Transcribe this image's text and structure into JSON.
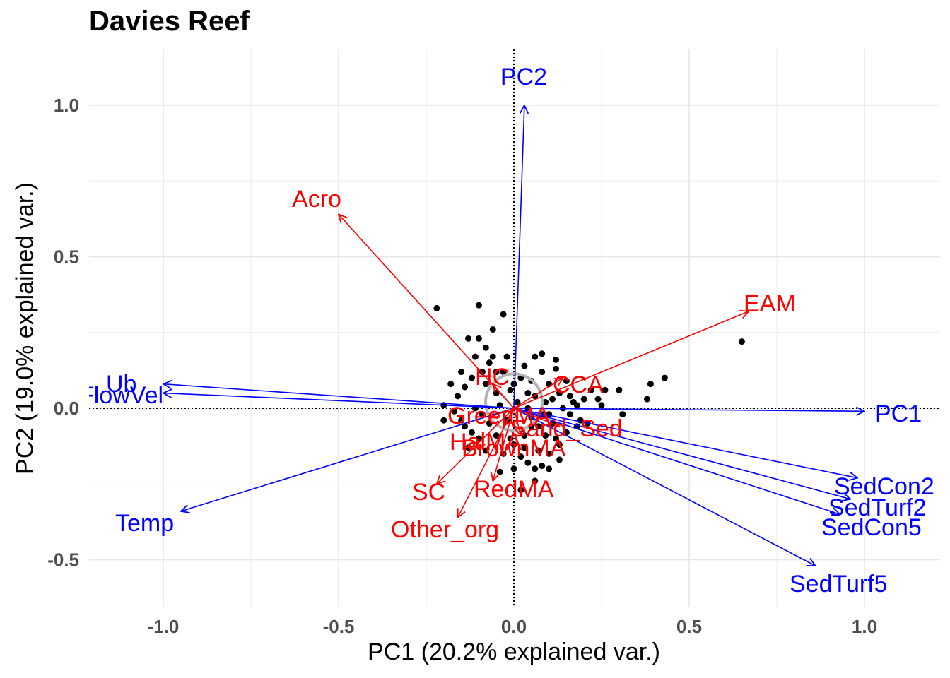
{
  "chart_data": {
    "type": "scatter",
    "subtype": "pca-biplot",
    "title": "Davies Reef",
    "xlabel": "PC1 (20.2% explained var.)",
    "ylabel": "PC2 (19.0% explained var.)",
    "xlim": [
      -1.2,
      1.2
    ],
    "ylim": [
      -0.64,
      1.18
    ],
    "x_ticks": [
      -1.0,
      -0.5,
      0.0,
      0.5,
      1.0
    ],
    "x_tick_labels": [
      "-1.0",
      "-0.5",
      "0.0",
      "0.5",
      "1.0"
    ],
    "y_ticks": [
      -0.5,
      0.0,
      0.5,
      1.0
    ],
    "y_tick_labels": [
      "-0.5",
      "0.0",
      "0.5",
      "1.0"
    ],
    "grid": true,
    "reference_lines": {
      "x": 0,
      "y": 0,
      "style": "dotted"
    },
    "colors": {
      "environment": "#0000ff",
      "benthic": "#ff0000",
      "points": "#000000",
      "ellipse": "#b3b3b3"
    },
    "loadings": {
      "environment": [
        {
          "name": "PC2",
          "x": 0.03,
          "y": 1.0
        },
        {
          "name": "PC1",
          "x": 1.0,
          "y": -0.01
        },
        {
          "name": "Ub",
          "x": -1.0,
          "y": 0.08
        },
        {
          "name": "FlowVel",
          "x": -1.0,
          "y": 0.05
        },
        {
          "name": "Temp",
          "x": -0.95,
          "y": -0.34
        },
        {
          "name": "SedCon2",
          "x": 0.98,
          "y": -0.23
        },
        {
          "name": "SedTurf2",
          "x": 0.96,
          "y": -0.3
        },
        {
          "name": "SedCon5",
          "x": 0.93,
          "y": -0.35
        },
        {
          "name": "SedTurf5",
          "x": 0.86,
          "y": -0.52
        }
      ],
      "benthic": [
        {
          "name": "Acro",
          "x": -0.5,
          "y": 0.64
        },
        {
          "name": "EAM",
          "x": 0.67,
          "y": 0.32
        },
        {
          "name": "CCA",
          "x": 0.14,
          "y": 0.1
        },
        {
          "name": "HC",
          "x": -0.06,
          "y": 0.08
        },
        {
          "name": "Sand_Sed",
          "x": 0.13,
          "y": -0.06
        },
        {
          "name": "GreenMA",
          "x": -0.07,
          "y": -0.03
        },
        {
          "name": "HalMA",
          "x": -0.03,
          "y": -0.06
        },
        {
          "name": "BrownMA",
          "x": 0.02,
          "y": -0.09
        },
        {
          "name": "SC",
          "x": -0.22,
          "y": -0.25
        },
        {
          "name": "RedMA",
          "x": -0.06,
          "y": -0.24
        },
        {
          "name": "Other_org",
          "x": -0.16,
          "y": -0.36
        }
      ]
    },
    "scores": [
      [
        0.65,
        0.22
      ],
      [
        0.43,
        0.1
      ],
      [
        0.39,
        0.08
      ],
      [
        0.38,
        0.03
      ],
      [
        0.3,
        0.06
      ],
      [
        0.31,
        -0.02
      ],
      [
        0.26,
        0.06
      ],
      [
        0.24,
        0.03
      ],
      [
        0.2,
        0.03
      ],
      [
        0.18,
        0.01
      ],
      [
        0.16,
        0.04
      ],
      [
        0.13,
        0.05
      ],
      [
        0.1,
        -0.02
      ],
      [
        0.08,
        0.12
      ],
      [
        0.06,
        0.17
      ],
      [
        -0.03,
        0.31
      ],
      [
        -0.1,
        0.34
      ],
      [
        -0.22,
        0.33
      ],
      [
        -0.13,
        0.23
      ],
      [
        -0.08,
        0.2
      ],
      [
        -0.06,
        0.17
      ],
      [
        -0.05,
        0.12
      ],
      [
        -0.09,
        0.12
      ],
      [
        -0.12,
        0.1
      ],
      [
        -0.14,
        0.07
      ],
      [
        -0.16,
        0.04
      ],
      [
        -0.2,
        0.01
      ],
      [
        -0.2,
        -0.04
      ],
      [
        -0.14,
        -0.06
      ],
      [
        -0.1,
        -0.1
      ],
      [
        -0.08,
        -0.14
      ],
      [
        0.0,
        -0.12
      ],
      [
        0.02,
        -0.16
      ],
      [
        0.04,
        -0.18
      ],
      [
        0.06,
        -0.2
      ],
      [
        0.08,
        -0.19
      ],
      [
        0.1,
        -0.15
      ],
      [
        0.12,
        -0.1
      ],
      [
        0.15,
        -0.08
      ],
      [
        0.18,
        -0.06
      ],
      [
        0.21,
        -0.05
      ],
      [
        0.05,
        0.09
      ],
      [
        0.03,
        0.14
      ],
      [
        -0.01,
        0.06
      ],
      [
        -0.04,
        0.01
      ],
      [
        -0.02,
        -0.04
      ],
      [
        0.02,
        -0.07
      ],
      [
        0.05,
        -0.03
      ],
      [
        0.09,
        0.02
      ],
      [
        -0.11,
        0.0
      ],
      [
        -0.17,
        -0.01
      ],
      [
        -0.13,
        -0.13
      ],
      [
        -0.07,
        -0.05
      ],
      [
        -0.05,
        0.05
      ],
      [
        0.01,
        0.02
      ],
      [
        0.07,
        -0.06
      ],
      [
        0.11,
        -0.05
      ],
      [
        0.14,
        0.0
      ],
      [
        -0.08,
        0.08
      ],
      [
        0.0,
        -0.2
      ],
      [
        0.03,
        -0.09
      ],
      [
        -0.03,
        -0.15
      ],
      [
        0.06,
        0.04
      ],
      [
        0.1,
        0.08
      ],
      [
        0.08,
        0.18
      ],
      [
        0.12,
        0.16
      ],
      [
        -0.02,
        0.17
      ],
      [
        -0.06,
        0.26
      ],
      [
        -0.1,
        0.23
      ],
      [
        -0.15,
        0.12
      ],
      [
        -0.18,
        0.08
      ],
      [
        0.16,
        -0.02
      ],
      [
        0.19,
        -0.04
      ],
      [
        0.04,
        0.0
      ],
      [
        -0.09,
        -0.02
      ],
      [
        0.07,
        -0.14
      ],
      [
        0.1,
        -0.2
      ],
      [
        0.03,
        -0.13
      ],
      [
        -0.12,
        -0.08
      ],
      [
        0.13,
        -0.12
      ],
      [
        0.06,
        -0.24
      ],
      [
        0.02,
        -0.27
      ],
      [
        -0.04,
        -0.21
      ],
      [
        0.09,
        -0.09
      ],
      [
        0.02,
        0.1
      ],
      [
        -0.03,
        0.12
      ],
      [
        0.11,
        0.03
      ],
      [
        0.04,
        0.05
      ],
      [
        0.15,
        0.09
      ],
      [
        0.12,
        0.13
      ],
      [
        -0.07,
        0.15
      ],
      [
        -0.11,
        0.17
      ],
      [
        0.05,
        -0.06
      ],
      [
        0.0,
        0.08
      ],
      [
        -0.05,
        -0.09
      ],
      [
        0.08,
        -0.02
      ],
      [
        0.17,
        0.02
      ],
      [
        0.22,
        0.06
      ],
      [
        0.25,
        0.01
      ],
      [
        -0.15,
        -0.04
      ],
      [
        -0.01,
        -0.1
      ],
      [
        0.13,
        -0.17
      ]
    ]
  }
}
